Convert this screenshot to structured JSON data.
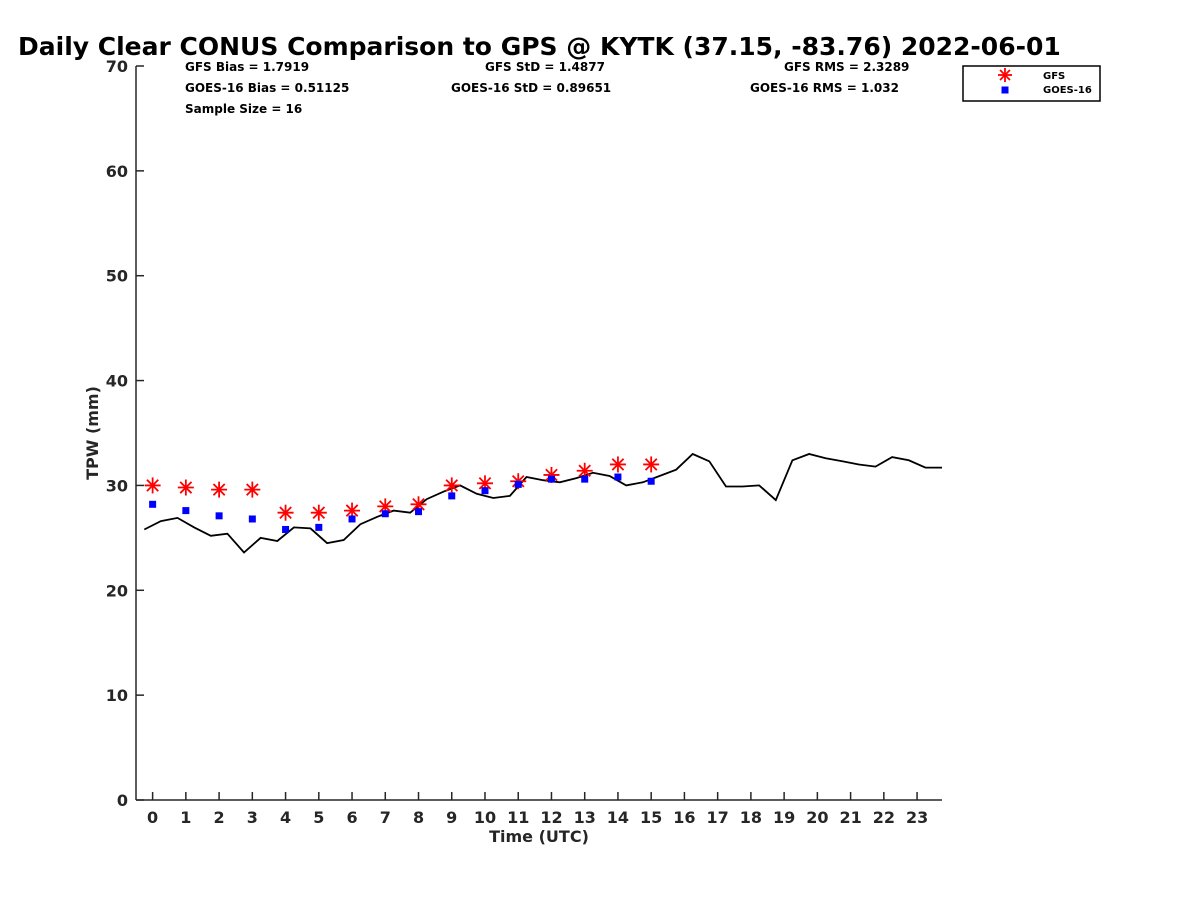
{
  "chart_data": {
    "type": "line",
    "title": "Daily Clear CONUS Comparison to GPS @ KYTK (37.15, -83.76) 2022-06-01",
    "xlabel": "Time (UTC)",
    "ylabel": "TPW (mm)",
    "xlim": [
      -0.5,
      23.75
    ],
    "ylim": [
      0,
      70
    ],
    "x_ticks": [
      "0",
      "1",
      "2",
      "3",
      "4",
      "5",
      "6",
      "7",
      "8",
      "9",
      "10",
      "11",
      "12",
      "13",
      "14",
      "15",
      "16",
      "17",
      "18",
      "19",
      "20",
      "21",
      "22",
      "23"
    ],
    "y_ticks": [
      "0",
      "10",
      "20",
      "30",
      "40",
      "50",
      "60",
      "70"
    ],
    "grid": false,
    "stats": {
      "gfs_bias": "GFS Bias = 1.7919",
      "goes_bias": "GOES-16 Bias = 0.51125",
      "sample_size": "Sample Size = 16",
      "gfs_std": "GFS StD = 1.4877",
      "goes_std": "GOES-16 StD = 0.89651",
      "gfs_rms": "GFS RMS = 2.3289",
      "goes_rms": "GOES-16 RMS = 1.032"
    },
    "legend": {
      "position": "top-right",
      "entries": [
        "GFS",
        "GOES-16"
      ]
    },
    "series": [
      {
        "name": "GPS",
        "style": "line",
        "color": "#000000",
        "x": [
          -0.25,
          0.25,
          0.75,
          1.25,
          1.75,
          2.25,
          2.75,
          3.25,
          3.75,
          4.25,
          4.75,
          5.25,
          5.75,
          6.25,
          6.75,
          7.25,
          7.75,
          8.25,
          8.75,
          9.25,
          9.75,
          10.25,
          10.75,
          11.25,
          11.75,
          12.25,
          12.75,
          13.25,
          13.75,
          14.25,
          14.75,
          15.25,
          15.75,
          16.25,
          16.75,
          17.25,
          17.75,
          18.25,
          18.75,
          19.25,
          19.75,
          20.25,
          20.75,
          21.25,
          21.75,
          22.25,
          22.75,
          23.25,
          23.75
        ],
        "y": [
          25.8,
          26.6,
          26.9,
          26.0,
          25.2,
          25.4,
          23.6,
          25.0,
          24.7,
          26.0,
          25.9,
          24.5,
          24.8,
          26.3,
          27.0,
          27.6,
          27.4,
          28.7,
          29.4,
          30.0,
          29.2,
          28.8,
          29.0,
          30.8,
          30.5,
          30.3,
          30.7,
          31.2,
          30.9,
          30.0,
          30.3,
          30.9,
          31.5,
          33.0,
          32.3,
          29.9,
          29.9,
          30.0,
          28.6,
          32.4,
          33.0,
          32.6,
          32.3,
          32.0,
          31.8,
          32.7,
          32.4,
          31.7,
          31.7
        ]
      },
      {
        "name": "GFS",
        "style": "star",
        "color": "#ff0000",
        "x": [
          0,
          1,
          2,
          3,
          4,
          5,
          6,
          7,
          8,
          9,
          10,
          11,
          12,
          13,
          14,
          15
        ],
        "y": [
          30.0,
          29.8,
          29.6,
          29.6,
          27.4,
          27.4,
          27.6,
          28.0,
          28.2,
          30.0,
          30.2,
          30.4,
          31.0,
          31.4,
          32.0,
          32.0
        ]
      },
      {
        "name": "GOES-16",
        "style": "square",
        "color": "#0000ff",
        "x": [
          0,
          1,
          2,
          3,
          4,
          5,
          6,
          7,
          8,
          9,
          10,
          11,
          12,
          13,
          14,
          15
        ],
        "y": [
          28.2,
          27.6,
          27.1,
          26.8,
          25.8,
          26.0,
          26.8,
          27.3,
          27.5,
          29.0,
          29.5,
          30.1,
          30.6,
          30.6,
          30.8,
          30.4
        ]
      }
    ]
  }
}
